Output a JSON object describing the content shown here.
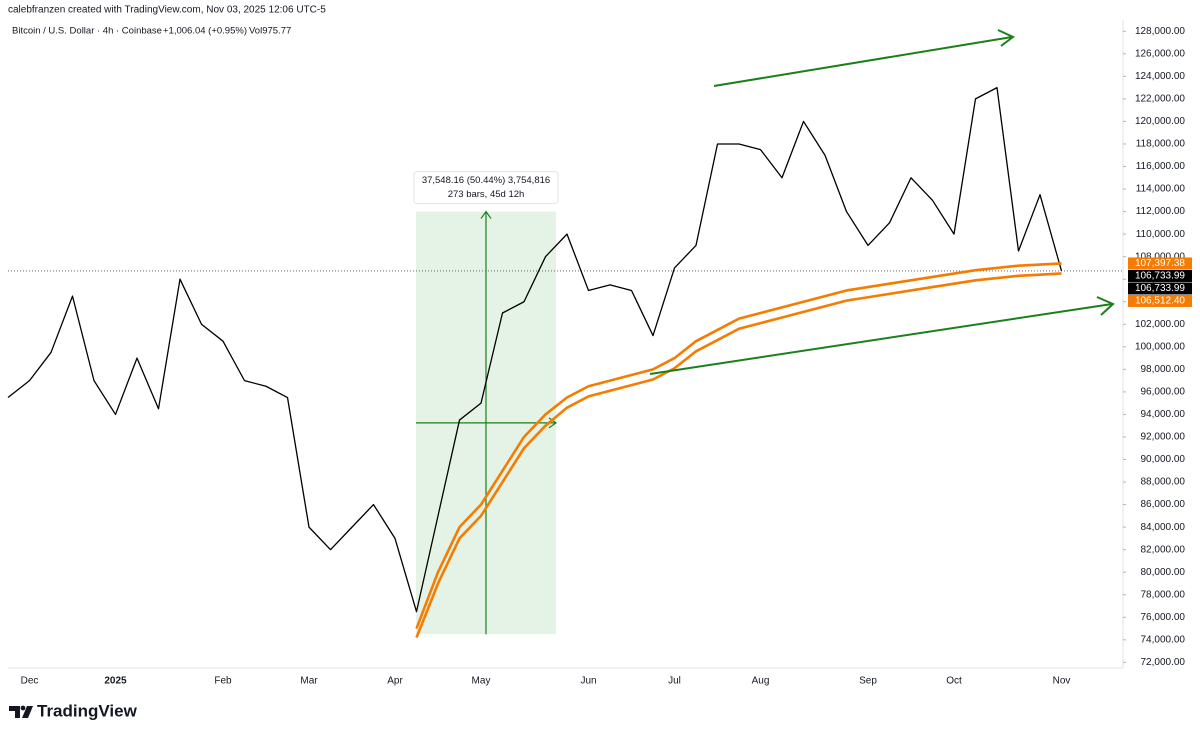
{
  "header": {
    "attribution": "calebfranzen created with TradingView.com, Nov 03, 2025 12:06 UTC-5",
    "symbol": "Bitcoin / U.S. Dollar · 4h · Coinbase",
    "change": "+1,006.04 (+0.95%)",
    "volume": "Vol975.77"
  },
  "chart_data": {
    "type": "line",
    "categories": [
      null,
      "Dec",
      null,
      null,
      null,
      "2025",
      null,
      null,
      null,
      null,
      "Feb",
      null,
      null,
      null,
      "Mar",
      null,
      null,
      null,
      "Apr",
      null,
      null,
      null,
      "May",
      null,
      null,
      null,
      null,
      "Jun",
      null,
      null,
      null,
      "Jul",
      null,
      null,
      null,
      "Aug",
      null,
      null,
      null,
      null,
      "Sep",
      null,
      null,
      null,
      "Oct",
      null,
      null,
      null,
      null,
      "Nov"
    ],
    "series": [
      {
        "color": "#000000",
        "values": [
          95500,
          97000,
          99500,
          104500,
          97000,
          94000,
          99000,
          94500,
          106000,
          102000,
          100500,
          97000,
          96500,
          95500,
          84000,
          82000,
          84000,
          86000,
          83000,
          76500,
          85000,
          93500,
          95000,
          103000,
          104000,
          108000,
          110000,
          105000,
          105500,
          105000,
          101000,
          107000,
          109000,
          118000,
          118000,
          117500,
          115000,
          120000,
          117000,
          112000,
          109000,
          111000,
          115000,
          113000,
          110000,
          122000,
          123000,
          108500,
          113500,
          106733.99
        ]
      },
      {
        "color": "#f57c00",
        "values": [
          null,
          null,
          null,
          null,
          null,
          null,
          null,
          null,
          null,
          null,
          null,
          null,
          null,
          null,
          null,
          null,
          null,
          null,
          null,
          75000,
          80000,
          84000,
          86000,
          89000,
          92000,
          94000,
          95500,
          96500,
          97000,
          97500,
          98000,
          99000,
          100500,
          101500,
          102500,
          103000,
          103500,
          104000,
          104500,
          105000,
          105300,
          105600,
          105900,
          106200,
          106500,
          106800,
          107000,
          107200,
          107300,
          107397.38
        ]
      },
      {
        "color": "#f57c00",
        "values": [
          null,
          null,
          null,
          null,
          null,
          null,
          null,
          null,
          null,
          null,
          null,
          null,
          null,
          null,
          null,
          null,
          null,
          null,
          null,
          74200,
          79000,
          83000,
          85000,
          88000,
          91000,
          93000,
          94600,
          95600,
          96100,
          96600,
          97100,
          98100,
          99600,
          100600,
          101600,
          102100,
          102600,
          103100,
          103600,
          104100,
          104400,
          104700,
          105000,
          105300,
          105600,
          105900,
          106100,
          106300,
          106400,
          106512.4
        ]
      }
    ],
    "ylim": [
      71500,
      129000
    ],
    "yticks": [
      {
        "value": 72000,
        "label": "72,000.00"
      },
      {
        "value": 74000,
        "label": "74,000.00"
      },
      {
        "value": 76000,
        "label": "76,000.00"
      },
      {
        "value": 78000,
        "label": "78,000.00"
      },
      {
        "value": 80000,
        "label": "80,000.00"
      },
      {
        "value": 82000,
        "label": "82,000.00"
      },
      {
        "value": 84000,
        "label": "84,000.00"
      },
      {
        "value": 86000,
        "label": "86,000.00"
      },
      {
        "value": 88000,
        "label": "88,000.00"
      },
      {
        "value": 90000,
        "label": "90,000.00"
      },
      {
        "value": 92000,
        "label": "92,000.00"
      },
      {
        "value": 94000,
        "label": "94,000.00"
      },
      {
        "value": 96000,
        "label": "96,000.00"
      },
      {
        "value": 98000,
        "label": "98,000.00"
      },
      {
        "value": 100000,
        "label": "100,000.00"
      },
      {
        "value": 102000,
        "label": "102,000.00"
      },
      {
        "value": 104000,
        "label": "104,000.00"
      },
      {
        "value": 106000,
        "label": "106,000.00"
      },
      {
        "value": 108000,
        "label": "108,000.00"
      },
      {
        "value": 110000,
        "label": "110,000.00"
      },
      {
        "value": 112000,
        "label": "112,000.00"
      },
      {
        "value": 114000,
        "label": "114,000.00"
      },
      {
        "value": 116000,
        "label": "116,000.00"
      },
      {
        "value": 118000,
        "label": "118,000.00"
      },
      {
        "value": 120000,
        "label": "120,000.00"
      },
      {
        "value": 122000,
        "label": "122,000.00"
      },
      {
        "value": 124000,
        "label": "124,000.00"
      },
      {
        "value": 126000,
        "label": "126,000.00"
      },
      {
        "value": 128000,
        "label": "128,000.00"
      }
    ],
    "grid": false,
    "price_labels": [
      {
        "value": 107397.38,
        "label": "107,397.38",
        "color": "#f57c00"
      },
      {
        "value": 106733.99,
        "label": "106,733.99",
        "color": "#000000"
      },
      {
        "value": 106733.99,
        "label": "106,733.99",
        "color": "#000000"
      },
      {
        "value": 106512.4,
        "label": "106,512.40",
        "color": "#f57c00"
      }
    ],
    "measure": {
      "low": 74500,
      "high": 112000,
      "lines": [
        "37,548.16 (50.44%) 3,754,816",
        "273 bars, 45d 12h"
      ]
    }
  },
  "footer": {
    "brand": "TradingView"
  }
}
